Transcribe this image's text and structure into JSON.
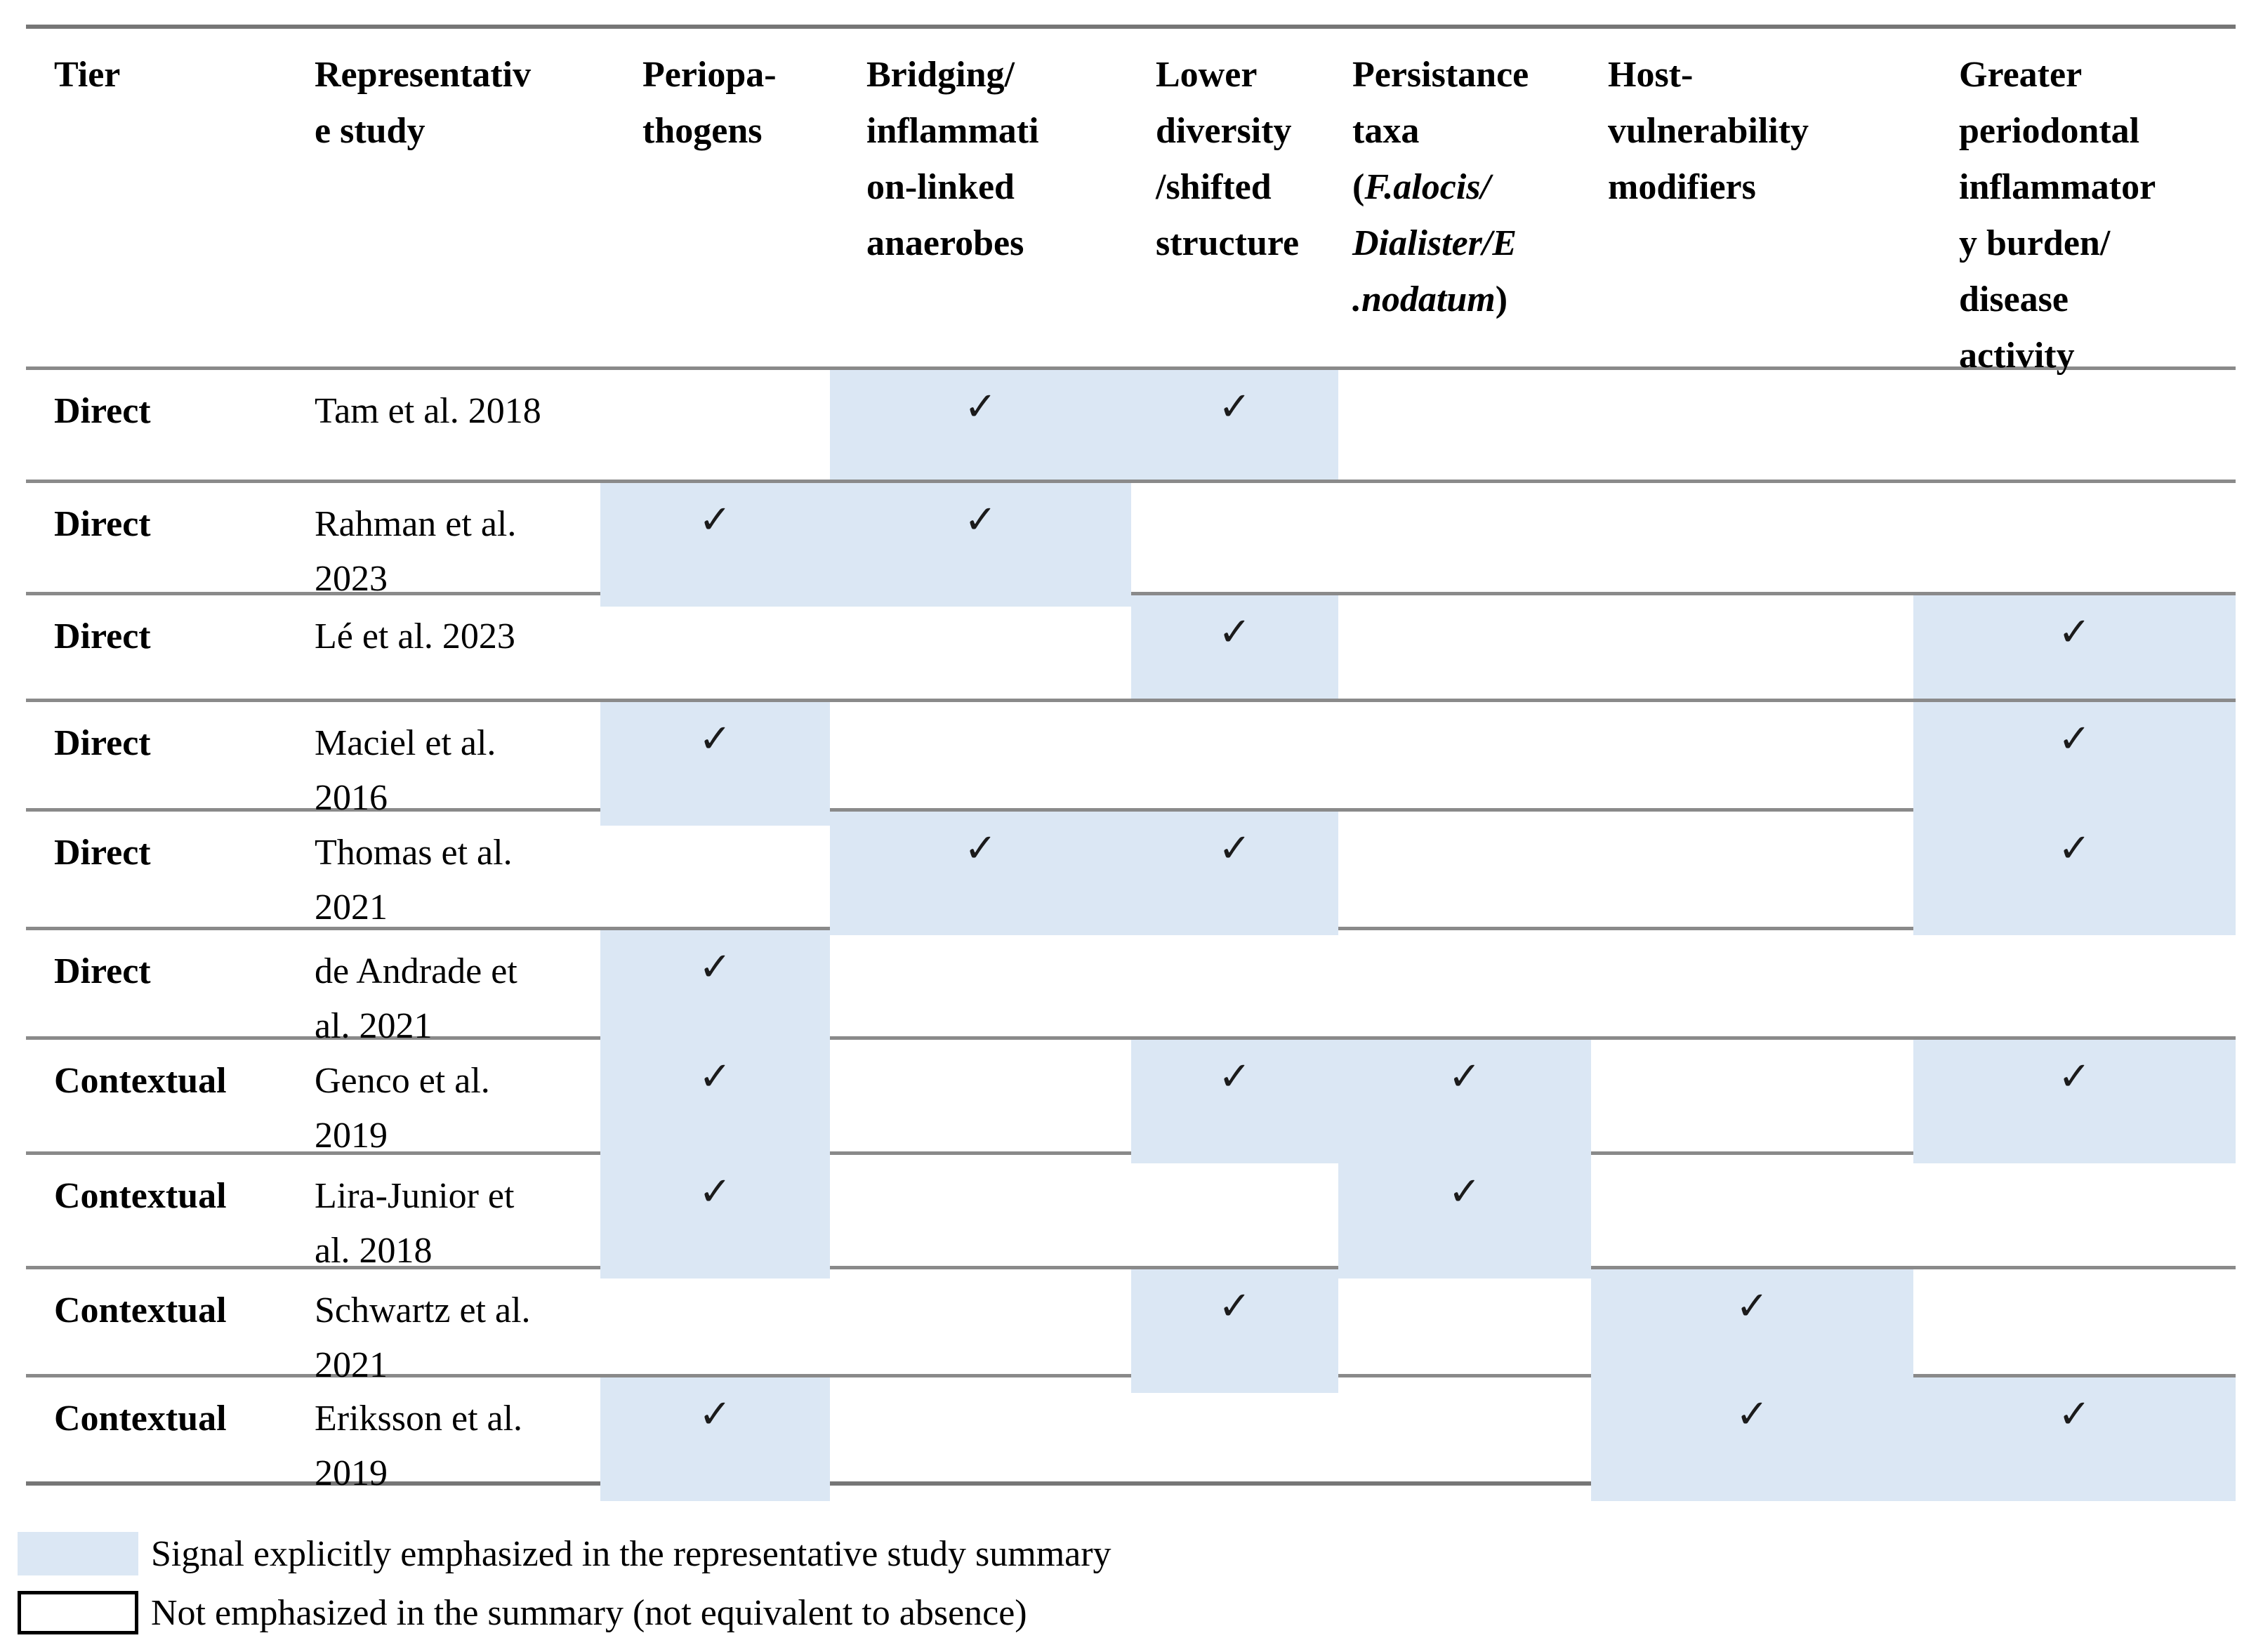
{
  "colors": {
    "highlight": "#dbe7f4",
    "rule": "#8a8a8a",
    "border": "#767676",
    "ink": "#000000",
    "check_ink": "#1b1b1b"
  },
  "check_glyph": "✓",
  "table": {
    "header": {
      "tier": "Tier",
      "study_lines": [
        "Representativ",
        "e study"
      ],
      "periopathogens_lines": [
        "Periopa-",
        "thogens"
      ],
      "bridging_lines": [
        "Bridging/",
        "inflammati",
        "on-linked",
        "anaerobes"
      ],
      "diversity_lines": [
        "Lower",
        "diversity",
        "/shifted",
        "structure"
      ],
      "persistance": {
        "l1": "Persistance",
        "l2": "taxa",
        "l3_pre": "(",
        "l3_italic": "F.alocis/",
        "l4_italic": "Dialister/E",
        "l5_italic": ".nodatum",
        "l5_post": ")"
      },
      "host_lines": [
        "Host-",
        "vulnerability",
        "modifiers"
      ],
      "burden_lines": [
        "Greater",
        "periodontal",
        "inflammator",
        "y burden/",
        "disease",
        "activity"
      ]
    },
    "rows": [
      {
        "tier": "Direct",
        "study_lines": [
          "Tam et al. 2018"
        ],
        "signals": [
          0,
          1,
          1,
          0,
          0,
          0
        ]
      },
      {
        "tier": "Direct",
        "study_lines": [
          "Rahman et al.",
          "2023"
        ],
        "signals": [
          1,
          1,
          0,
          0,
          0,
          0
        ]
      },
      {
        "tier": "Direct",
        "study_lines": [
          "Lé et al. 2023"
        ],
        "signals": [
          0,
          0,
          1,
          0,
          0,
          1
        ]
      },
      {
        "tier": "Direct",
        "study_lines": [
          "Maciel et al.",
          "2016"
        ],
        "signals": [
          1,
          0,
          0,
          0,
          0,
          1
        ]
      },
      {
        "tier": "Direct",
        "study_lines": [
          "Thomas et al.",
          "2021"
        ],
        "signals": [
          0,
          1,
          1,
          0,
          0,
          1
        ]
      },
      {
        "tier": "Direct",
        "study_lines": [
          "de Andrade et",
          "al. 2021"
        ],
        "signals": [
          1,
          0,
          0,
          0,
          0,
          0
        ]
      },
      {
        "tier": "Contextual",
        "study_lines": [
          "Genco et al.",
          "2019"
        ],
        "signals": [
          1,
          0,
          1,
          1,
          0,
          1
        ]
      },
      {
        "tier": "Contextual",
        "study_lines": [
          "Lira-Junior et",
          "al. 2018"
        ],
        "signals": [
          1,
          0,
          0,
          1,
          0,
          0
        ]
      },
      {
        "tier": "Contextual",
        "study_lines": [
          "Schwartz et al.",
          "2021"
        ],
        "signals": [
          0,
          0,
          1,
          0,
          1,
          0
        ]
      },
      {
        "tier": "Contextual",
        "study_lines": [
          "Eriksson et al.",
          "2019"
        ],
        "signals": [
          1,
          0,
          0,
          0,
          1,
          1
        ]
      }
    ]
  },
  "legend": [
    {
      "swatch": "emphasized",
      "text": "Signal explicitly emphasized in the representative study summary"
    },
    {
      "swatch": "plain",
      "text": "Not emphasized in the summary (not equivalent to absence)"
    }
  ]
}
